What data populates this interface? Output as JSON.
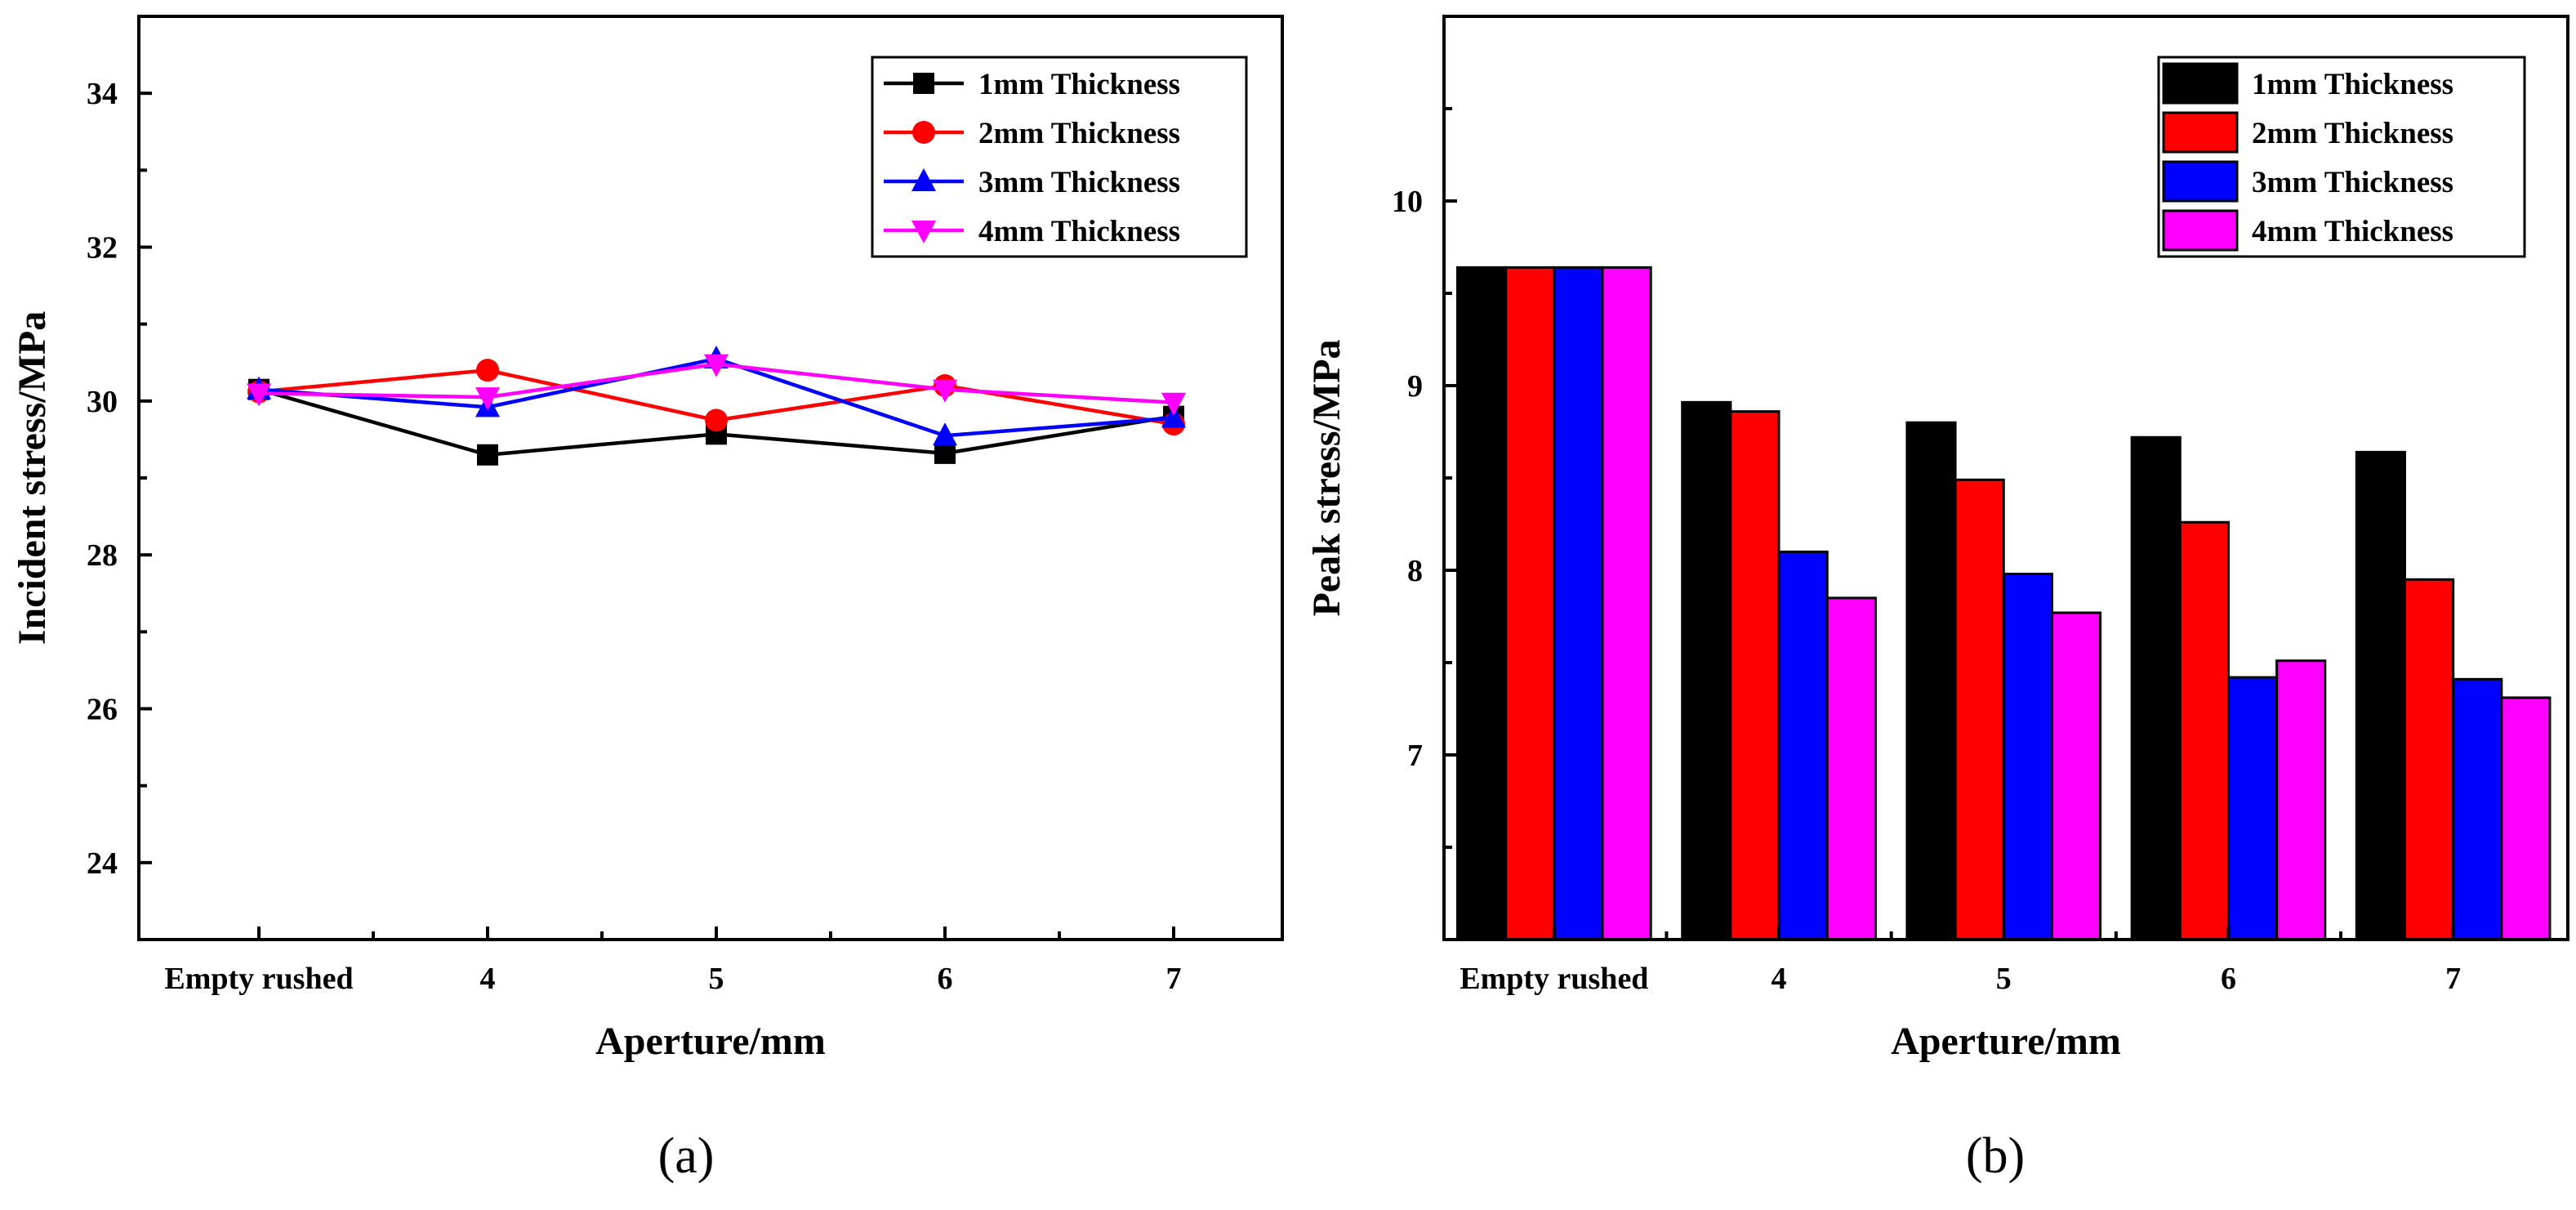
{
  "chart_data": [
    {
      "id": "a",
      "type": "line",
      "panel_label": "(a)",
      "xlabel": "Aperture/mm",
      "ylabel": "Incident stress/MPa",
      "categories": [
        "Empty rushed",
        "4",
        "5",
        "6",
        "7"
      ],
      "ylim": [
        23,
        35
      ],
      "yticks": [
        24,
        26,
        28,
        30,
        32,
        34
      ],
      "legend_position": "top-right",
      "series": [
        {
          "name": "1mm Thickness",
          "color": "#000000",
          "marker": "square",
          "values": [
            30.15,
            29.3,
            29.57,
            29.32,
            29.8
          ]
        },
        {
          "name": "2mm Thickness",
          "color": "#ff0000",
          "marker": "circle",
          "values": [
            30.12,
            30.4,
            29.75,
            30.2,
            29.7
          ]
        },
        {
          "name": "3mm Thickness",
          "color": "#0000ff",
          "marker": "triangle-up",
          "values": [
            30.15,
            29.92,
            30.55,
            29.55,
            29.78
          ]
        },
        {
          "name": "4mm Thickness",
          "color": "#ff00ff",
          "marker": "triangle-down",
          "values": [
            30.1,
            30.05,
            30.48,
            30.15,
            29.98
          ]
        }
      ]
    },
    {
      "id": "b",
      "type": "bar",
      "panel_label": "(b)",
      "xlabel": "Aperture/mm",
      "ylabel": "Peak stress/MPa",
      "categories": [
        "Empty rushed",
        "4",
        "5",
        "6",
        "7"
      ],
      "ylim": [
        6,
        11
      ],
      "yticks": [
        7,
        8,
        9,
        10
      ],
      "legend_position": "top-right",
      "series": [
        {
          "name": "1mm Thickness",
          "color": "#000000",
          "values": [
            9.64,
            8.91,
            8.8,
            8.72,
            8.64
          ]
        },
        {
          "name": "2mm Thickness",
          "color": "#ff0000",
          "values": [
            9.64,
            8.86,
            8.49,
            8.26,
            7.95
          ]
        },
        {
          "name": "3mm Thickness",
          "color": "#0000ff",
          "values": [
            9.64,
            8.1,
            7.98,
            7.42,
            7.41
          ]
        },
        {
          "name": "4mm Thickness",
          "color": "#ff00ff",
          "values": [
            9.64,
            7.85,
            7.77,
            7.51,
            7.31
          ]
        }
      ]
    }
  ]
}
